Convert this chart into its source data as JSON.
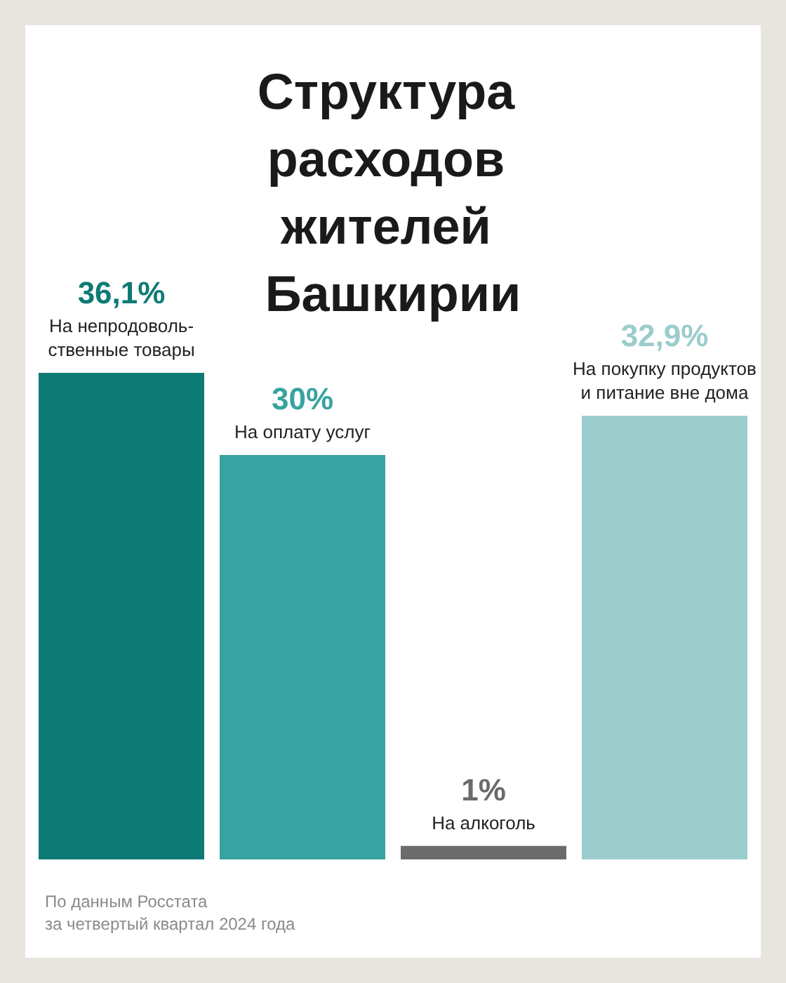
{
  "chart_data": {
    "type": "bar",
    "title": "Структура расходов жителей Башкирии",
    "categories": [
      "На непродоволь-\nственные товары",
      "На оплату услуг",
      "На алкоголь",
      "На покупку продуктов\nи питание вне дома"
    ],
    "values": [
      36.1,
      30,
      1,
      32.9
    ],
    "colors": [
      "#0e7a75",
      "#38a3a0",
      "#6b6b6b",
      "#9ccccc"
    ],
    "value_labels": [
      "36,1%",
      "30%",
      "1%",
      "32,9%"
    ],
    "tick_labels": false,
    "annotations": [
      "По данным Росстата\nза четвертый квартал 2024 года"
    ]
  }
}
